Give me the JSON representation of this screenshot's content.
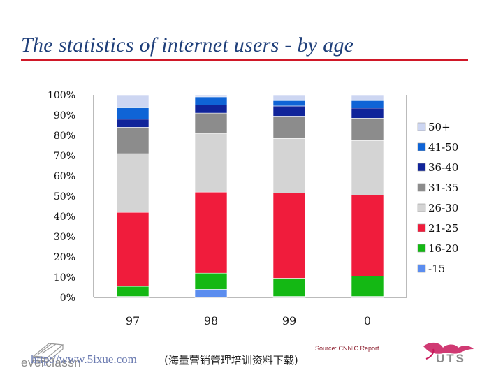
{
  "slide": {
    "title": "The statistics of internet users - by age",
    "url": "http://www.5ixue.com",
    "url_note": "(海量营销管理培训资料下载)",
    "source": "Source: CNNIC Report",
    "logo_left": "everclassn",
    "logo_right": "UTS"
  },
  "colors": {
    "title": "#1f3f7a",
    "title_rule": "#d01828",
    "series": [
      "#5b8def",
      "#14b814",
      "#f01c3c",
      "#d4d4d4",
      "#8c8c8c",
      "#10249a",
      "#0f64d6",
      "#cdd6f2"
    ]
  },
  "chart_data": {
    "type": "bar",
    "stacked": true,
    "title": "",
    "xlabel": "",
    "ylabel": "",
    "ylim": [
      0,
      100
    ],
    "yticks": [
      "0%",
      "10%",
      "20%",
      "30%",
      "40%",
      "50%",
      "60%",
      "70%",
      "80%",
      "90%",
      "100%"
    ],
    "categories": [
      "97",
      "98",
      "99",
      "0"
    ],
    "legend_position": "right",
    "series": [
      {
        "name": "-15",
        "values": [
          0.5,
          4,
          0.5,
          0.5
        ]
      },
      {
        "name": "16-20",
        "values": [
          5,
          8,
          9,
          10
        ]
      },
      {
        "name": "21-25",
        "values": [
          36.5,
          40,
          42,
          40
        ]
      },
      {
        "name": "26-30",
        "values": [
          29,
          29,
          27,
          27
        ]
      },
      {
        "name": "31-35",
        "values": [
          13,
          10,
          11,
          11
        ]
      },
      {
        "name": "36-40",
        "values": [
          4,
          4,
          5,
          5
        ]
      },
      {
        "name": "41-50",
        "values": [
          6,
          4,
          3,
          4
        ]
      },
      {
        "name": "50+",
        "values": [
          6,
          1,
          2.5,
          2.5
        ]
      }
    ]
  }
}
